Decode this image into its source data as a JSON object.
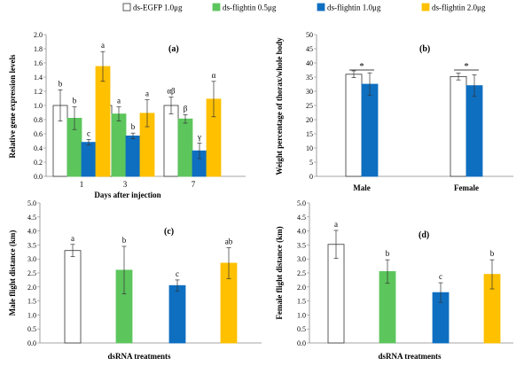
{
  "legend": [
    {
      "label": "ds-EGFP 1.0μg",
      "color": "#ffffff",
      "stroke": "#333333"
    },
    {
      "label": "ds-flightin 0.5μg",
      "color": "#5cc65c",
      "stroke": "#5cc65c"
    },
    {
      "label": "ds-flightin 1.0μg",
      "color": "#0e6fc1",
      "stroke": "#0e6fc1"
    },
    {
      "label": "ds-flightin 2.0μg",
      "color": "#ffc000",
      "stroke": "#ffc000"
    }
  ],
  "chart_data": [
    {
      "type": "bar",
      "panel": "(a)",
      "ylabel": "Relative gene expression levels",
      "xlabel": "Days after injection",
      "categories": [
        "1",
        "3",
        "7"
      ],
      "ylim": [
        0,
        2.0
      ],
      "yticks": [
        "0.0",
        "0.2",
        "0.4",
        "0.6",
        "0.8",
        "1.0",
        "1.2",
        "1.4",
        "1.6",
        "1.8",
        "2.0"
      ],
      "series": [
        {
          "name": "ds-EGFP 1.0μg",
          "values": [
            1.0,
            1.0,
            1.0
          ],
          "errors": [
            0.22,
            0.09,
            0.12
          ],
          "labels": [
            "b",
            "a",
            "αβ"
          ]
        },
        {
          "name": "ds-flightin 0.5μg",
          "values": [
            0.82,
            0.88,
            0.81
          ],
          "errors": [
            0.16,
            0.1,
            0.06
          ],
          "labels": [
            "b",
            "a",
            "β"
          ]
        },
        {
          "name": "ds-flightin 1.0μg",
          "values": [
            0.48,
            0.57,
            0.36
          ],
          "errors": [
            0.04,
            0.04,
            0.11
          ],
          "labels": [
            "c",
            "b",
            "γ"
          ]
        },
        {
          "name": "ds-flightin 2.0μg",
          "values": [
            1.55,
            0.89,
            1.09
          ],
          "errors": [
            0.21,
            0.19,
            0.25
          ],
          "labels": [
            "a",
            "a",
            "α"
          ]
        }
      ]
    },
    {
      "type": "bar",
      "panel": "(b)",
      "ylabel": "Weight percentage of thorax/whole body",
      "categories": [
        "Male",
        "Female"
      ],
      "ylim": [
        0,
        50
      ],
      "yticks": [
        "0",
        "5",
        "10",
        "15",
        "20",
        "25",
        "30",
        "35",
        "40",
        "45",
        "50"
      ],
      "series": [
        {
          "name": "ds-EGFP 1.0μg",
          "values": [
            36.0,
            35.2
          ],
          "errors": [
            1.2,
            1.2
          ]
        },
        {
          "name": "ds-flightin 1.0μg",
          "values": [
            32.5,
            32.0
          ],
          "errors": [
            4.0,
            3.8
          ]
        }
      ],
      "annotations": [
        "*",
        "*"
      ]
    },
    {
      "type": "bar",
      "panel": "(c)",
      "ylabel": "Male flight distance (km)",
      "xlabel": "dsRNA treatments",
      "ylim": [
        0,
        5.0
      ],
      "yticks": [
        "0.0",
        "0.5",
        "1.0",
        "1.5",
        "2.0",
        "2.5",
        "3.0",
        "3.5",
        "4.0",
        "4.5",
        "5.0"
      ],
      "series": [
        {
          "name": "ds-EGFP 1.0μg",
          "value": 3.3,
          "error": 0.22,
          "label": "a"
        },
        {
          "name": "ds-flightin 0.5μg",
          "value": 2.6,
          "error": 0.85,
          "label": "b"
        },
        {
          "name": "ds-flightin 1.0μg",
          "value": 2.05,
          "error": 0.2,
          "label": "c"
        },
        {
          "name": "ds-flightin 2.0μg",
          "value": 2.85,
          "error": 0.55,
          "label": "ab"
        }
      ]
    },
    {
      "type": "bar",
      "panel": "(d)",
      "ylabel": "Female flight distance (km)",
      "xlabel": "dsRNA treatments",
      "ylim": [
        0,
        5.0
      ],
      "yticks": [
        "0.0",
        "0.5",
        "1.0",
        "1.5",
        "2.0",
        "2.5",
        "3.0",
        "3.5",
        "4.0",
        "4.5",
        "5.0"
      ],
      "series": [
        {
          "name": "ds-EGFP 1.0μg",
          "value": 3.52,
          "error": 0.5,
          "label": "a"
        },
        {
          "name": "ds-flightin 0.5μg",
          "value": 2.55,
          "error": 0.42,
          "label": "b"
        },
        {
          "name": "ds-flightin 1.0μg",
          "value": 1.8,
          "error": 0.35,
          "label": "c"
        },
        {
          "name": "ds-flightin 2.0μg",
          "value": 2.45,
          "error": 0.52,
          "label": "b"
        }
      ]
    }
  ]
}
